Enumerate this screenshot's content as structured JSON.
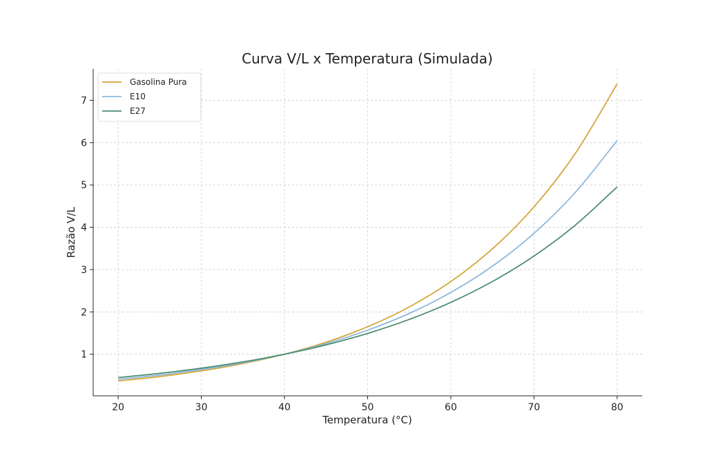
{
  "chart_data": {
    "type": "line",
    "title": "Curva V/L x Temperatura (Simulada)",
    "xlabel": "Temperatura (°C)",
    "ylabel": "Razão V/L",
    "xlim": [
      17,
      83
    ],
    "ylim": [
      0.017,
      7.74
    ],
    "xticks": [
      20,
      30,
      40,
      50,
      60,
      70,
      80
    ],
    "yticks": [
      1,
      2,
      3,
      4,
      5,
      6,
      7
    ],
    "grid": true,
    "legend": "top-left",
    "x": [
      20,
      25,
      30,
      35,
      40,
      45,
      50,
      55,
      60,
      65,
      70,
      75,
      80
    ],
    "series": [
      {
        "name": "Gasolina Pura",
        "color": "#d4a63a",
        "values": [
          0.368,
          0.472,
          0.607,
          0.779,
          1,
          1.284,
          1.649,
          2.117,
          2.718,
          3.49,
          4.482,
          5.755,
          7.389
        ]
      },
      {
        "name": "E10",
        "color": "#8cb8dc",
        "values": [
          0.407,
          0.509,
          0.638,
          0.799,
          1,
          1.252,
          1.568,
          1.964,
          2.46,
          3.08,
          3.857,
          4.831,
          6.05
        ]
      },
      {
        "name": "E27",
        "color": "#4b8c70",
        "values": [
          0.449,
          0.549,
          0.67,
          0.819,
          1,
          1.221,
          1.492,
          1.822,
          2.226,
          2.718,
          3.32,
          4.055,
          4.953
        ]
      }
    ]
  }
}
